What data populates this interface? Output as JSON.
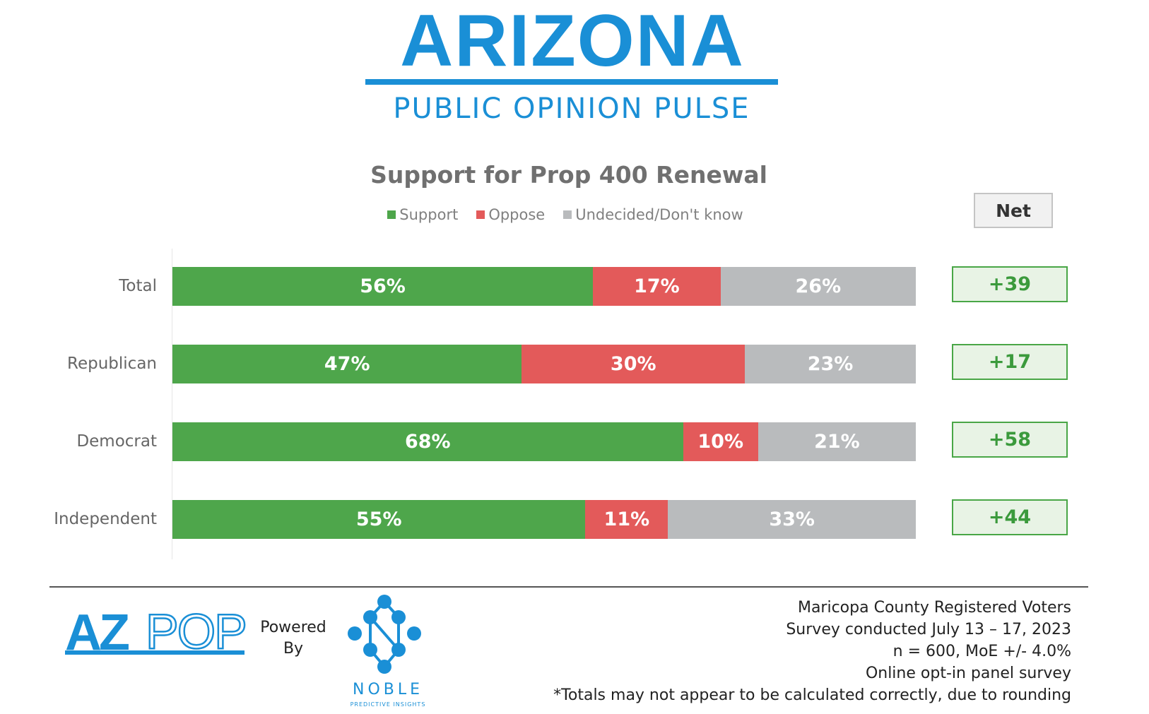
{
  "brand": {
    "title": "ARIZONA",
    "subtitle": "PUBLIC OPINION PULSE"
  },
  "chart_data": {
    "type": "bar",
    "orientation": "horizontal",
    "stacked": true,
    "title": "Support for Prop 400 Renewal",
    "categories": [
      "Total",
      "Republican",
      "Democrat",
      "Independent"
    ],
    "series": [
      {
        "name": "Support",
        "color": "#4ea64b",
        "values": [
          56,
          47,
          68,
          55
        ],
        "labels": [
          "56%",
          "47%",
          "68%",
          "55%"
        ]
      },
      {
        "name": "Oppose",
        "color": "#e35a5a",
        "values": [
          17,
          30,
          10,
          11
        ],
        "labels": [
          "17%",
          "30%",
          "10%",
          "11%"
        ]
      },
      {
        "name": "Undecided/Don't know",
        "color": "#b9bbbd",
        "values": [
          26,
          23,
          21,
          33
        ],
        "labels": [
          "26%",
          "23%",
          "21%",
          "33%"
        ]
      }
    ],
    "legend_position": "top-center",
    "net_header": "Net",
    "net_values": [
      "+39",
      "+17",
      "+58",
      "+44"
    ]
  },
  "colors": {
    "brand_blue": "#1a8fd6",
    "net_green": "#3b9a3c"
  },
  "footer": {
    "logo_text": "AZPOP",
    "powered_by": [
      "Powered",
      "By"
    ],
    "partner_name": "NOBLE",
    "partner_tagline": "PREDICTIVE INSIGHTS",
    "notes": [
      "Maricopa County Registered Voters",
      "Survey conducted July 13 – 17, 2023",
      "n = 600, MoE +/- 4.0%",
      "Online opt-in panel survey",
      "*Totals may not appear to be calculated correctly, due to rounding"
    ]
  }
}
